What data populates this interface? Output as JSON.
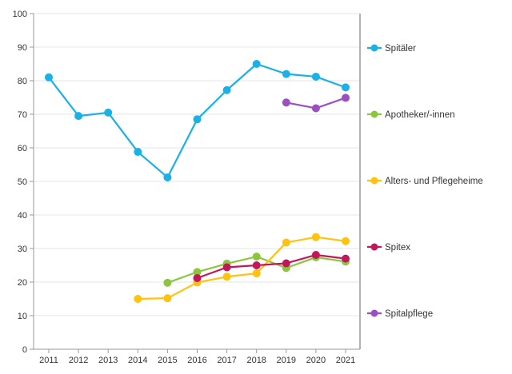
{
  "chart_data": {
    "type": "line",
    "title": "",
    "xlabel": "",
    "ylabel": "",
    "x": [
      "2011",
      "2012",
      "2013",
      "2014",
      "2015",
      "2016",
      "2017",
      "2018",
      "2019",
      "2020",
      "2021"
    ],
    "ylim": [
      0,
      100
    ],
    "yticks": [
      0,
      10,
      20,
      30,
      40,
      50,
      60,
      70,
      80,
      90,
      100
    ],
    "grid": false,
    "legend_position": "right",
    "series": [
      {
        "name": "Spitäler",
        "color": "#1ab0e8",
        "values": [
          81,
          69.5,
          70.5,
          58.8,
          51.2,
          68.5,
          77.2,
          85,
          82,
          81.2,
          78
        ]
      },
      {
        "name": "Apotheker/-innen",
        "color": "#8cc63f",
        "values": [
          null,
          null,
          null,
          null,
          19.8,
          23,
          25.5,
          27.6,
          24.2,
          27.4,
          26.1
        ]
      },
      {
        "name": "Alters- und Pflegeheime",
        "color": "#ffc20e",
        "values": [
          null,
          null,
          null,
          15,
          15.2,
          19.9,
          21.6,
          22.6,
          31.8,
          33.4,
          32.2
        ]
      },
      {
        "name": "Spitex",
        "color": "#c2185b",
        "values": [
          null,
          null,
          null,
          null,
          null,
          21.2,
          24.4,
          25,
          25.6,
          28.1,
          27
        ]
      },
      {
        "name": "Spitalpflege",
        "color": "#9b4fc1",
        "values": [
          null,
          null,
          null,
          null,
          null,
          null,
          null,
          null,
          73.5,
          71.8,
          74.9
        ]
      }
    ]
  }
}
